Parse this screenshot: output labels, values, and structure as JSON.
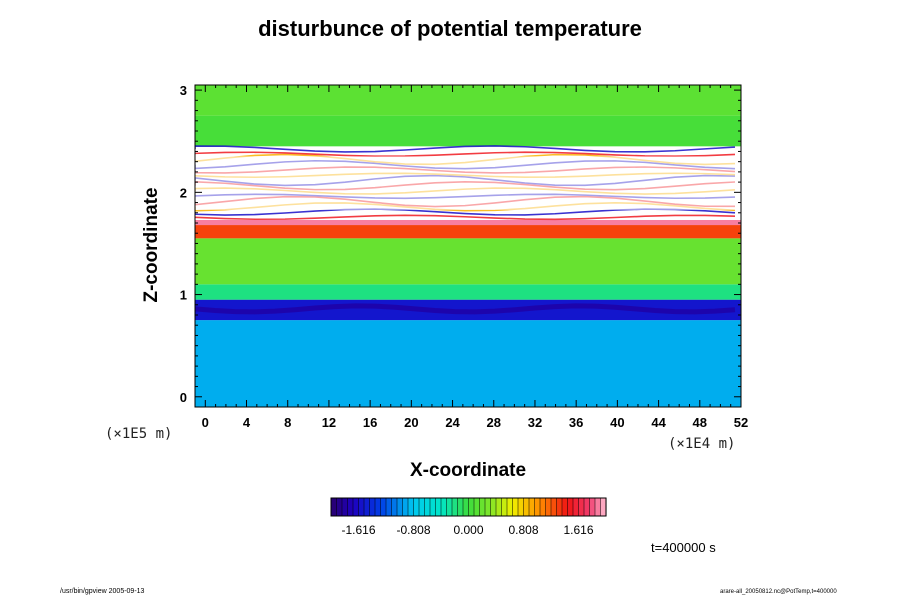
{
  "chart_data": {
    "type": "heatmap",
    "title": "disturbunce of potential temperature",
    "xlabel": "X-coordinate",
    "ylabel": "Z-coordinate",
    "x_multiplier": "(×1E4 m)",
    "y_multiplier": "(×1E5 m)",
    "x_ticks": [
      "0",
      "4",
      "8",
      "12",
      "16",
      "20",
      "24",
      "28",
      "32",
      "36",
      "40",
      "44",
      "48",
      "52"
    ],
    "y_ticks": [
      "0",
      "1",
      "2",
      "3"
    ],
    "xlim": [
      -1,
      52
    ],
    "ylim": [
      -0.1,
      3.05
    ],
    "colorbar": {
      "min": -2.02,
      "max": 2.02,
      "tick_labels": [
        "-1.616",
        "-0.808",
        "0.000",
        "0.808",
        "1.616"
      ],
      "tick_values": [
        -1.616,
        -0.808,
        0.0,
        0.808,
        1.616
      ]
    },
    "bands": [
      {
        "z0": -0.1,
        "z1": 0.75,
        "value": -0.9
      },
      {
        "z0": 0.75,
        "z1": 0.95,
        "value": -1.55
      },
      {
        "z0": 0.95,
        "z1": 1.1,
        "value": -0.2
      },
      {
        "z0": 1.1,
        "z1": 1.55,
        "value": 0.2
      },
      {
        "z0": 1.55,
        "z1": 1.68,
        "value": 1.3
      },
      {
        "z0": 1.68,
        "z1": 1.73,
        "value": 1.9
      },
      {
        "z0": 1.73,
        "z1": 2.45,
        "value": null
      },
      {
        "z0": 2.45,
        "z1": 2.75,
        "value": 0.05
      },
      {
        "z0": 2.75,
        "z1": 3.05,
        "value": 0.15
      }
    ],
    "time": "t=400000 s"
  },
  "footer": {
    "left": "/usr/bin/gpview 2005-09-13",
    "right": "arare-all_20050812.nc@PotTemp,t=400000"
  }
}
